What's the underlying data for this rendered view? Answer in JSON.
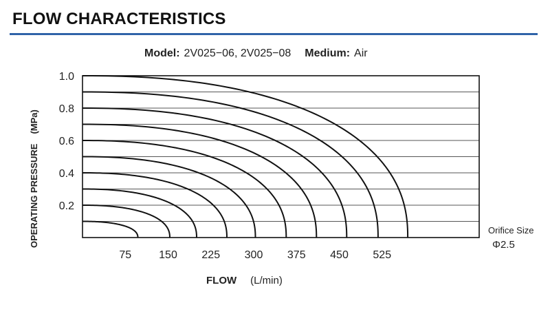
{
  "header": {
    "title": "FLOW CHARACTERISTICS"
  },
  "model_line": {
    "model_label": "Model:",
    "model_value": "2V025−06, 2V025−08",
    "medium_label": "Medium:",
    "medium_value": "Air"
  },
  "orifice": {
    "label": "Orifice Size",
    "value": "Φ2.5"
  },
  "colors": {
    "accent": "#2f63a8",
    "curve": "#111111",
    "grid": "#555555"
  },
  "chart_data": {
    "type": "line",
    "title": "",
    "xlabel": "FLOW",
    "xunit": "(L/min)",
    "ylabel": "OPERATING PRESSURE",
    "yunit": "(MPa)",
    "xlim": [
      0,
      660
    ],
    "ylim": [
      0,
      1.0
    ],
    "x_ticks": [
      75,
      150,
      225,
      300,
      375,
      450,
      525
    ],
    "y_ticks": [
      0.2,
      0.4,
      0.6,
      0.8,
      1.0
    ],
    "y_tick_labels": [
      "0.2",
      "0.4",
      "0.6",
      "0.8",
      "1.0"
    ],
    "grid": true,
    "legend": "none",
    "series": [
      {
        "pressure": 0.1,
        "max_flow": 97
      },
      {
        "pressure": 0.2,
        "max_flow": 153
      },
      {
        "pressure": 0.3,
        "max_flow": 200
      },
      {
        "pressure": 0.4,
        "max_flow": 253
      },
      {
        "pressure": 0.5,
        "max_flow": 303
      },
      {
        "pressure": 0.6,
        "max_flow": 357
      },
      {
        "pressure": 0.7,
        "max_flow": 410
      },
      {
        "pressure": 0.8,
        "max_flow": 463
      },
      {
        "pressure": 0.9,
        "max_flow": 518
      },
      {
        "pressure": 1.0,
        "max_flow": 570
      }
    ]
  }
}
